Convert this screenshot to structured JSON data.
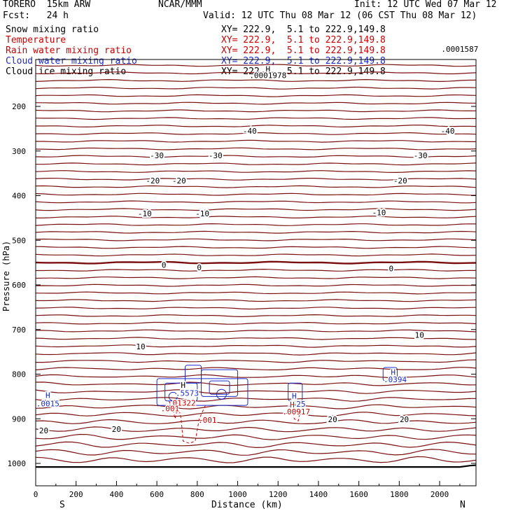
{
  "header": {
    "model": "TORERO  15km ARW",
    "forecast": "Fcst:   24 h",
    "center": "NCAR/MMM",
    "init": "Init: 12 UTC Wed 07 Mar 12",
    "valid": "Valid: 12 UTC Thu 08 Mar 12 (06 CST Thu 08 Mar 12)"
  },
  "colors": {
    "snow": "#000000",
    "temperature": "#7a1010",
    "rain": "#cc0000",
    "cloud_water": "#1a2ccf",
    "cloud_ice": "#000000"
  },
  "legend": [
    {
      "label": "Snow mixing ratio",
      "xy": "XY= 222.9,  5.1 to 222.9,149.8",
      "color": "#000000"
    },
    {
      "label": "Temperature",
      "xy": "XY= 222.9,  5.1 to 222.9,149.8",
      "color": "#cc0000"
    },
    {
      "label": "Rain water mixing ratio",
      "xy": "XY= 222.9,  5.1 to 222.9,149.8",
      "color": "#cc0000"
    },
    {
      "label": "Cloud water mixing ratio",
      "xy": "XY= 222.9,  5.1 to 222.9,149.8",
      "color": "#1a2ccf"
    },
    {
      "label": "Cloud ice mixing ratio",
      "xy": "XY= 222.9,  5.1 to 222.9,149.8",
      "color": "#000000"
    }
  ],
  "chart_data": {
    "type": "line",
    "xlabel": "Distance (km)",
    "ylabel": "Pressure (hPa)",
    "xlim": [
      0,
      2180
    ],
    "ylim": [
      1045,
      100
    ],
    "y_scale": "linear (inverted)",
    "x_ticks": [
      0,
      200,
      400,
      600,
      800,
      1000,
      1200,
      1400,
      1600,
      1800,
      2000
    ],
    "y_ticks": [
      200,
      300,
      400,
      500,
      600,
      700,
      800,
      900,
      1000
    ],
    "x_end_labels": {
      "left": "S",
      "right": "N"
    },
    "temperature_isotherm_labels": [
      {
        "x": 1060,
        "p": 255,
        "text": "-40"
      },
      {
        "x": 2040,
        "p": 255,
        "text": "-40"
      },
      {
        "x": 600,
        "p": 310,
        "text": "-30"
      },
      {
        "x": 890,
        "p": 310,
        "text": "-30"
      },
      {
        "x": 1905,
        "p": 310,
        "text": "-30"
      },
      {
        "x": 580,
        "p": 366,
        "text": "-20"
      },
      {
        "x": 710,
        "p": 366,
        "text": "-20"
      },
      {
        "x": 1805,
        "p": 366,
        "text": "-20"
      },
      {
        "x": 540,
        "p": 440,
        "text": "-10"
      },
      {
        "x": 825,
        "p": 440,
        "text": "-10"
      },
      {
        "x": 1700,
        "p": 438,
        "text": "-10"
      },
      {
        "x": 635,
        "p": 555,
        "text": "0"
      },
      {
        "x": 810,
        "p": 561,
        "text": "0"
      },
      {
        "x": 1760,
        "p": 563,
        "text": "0"
      },
      {
        "x": 520,
        "p": 738,
        "text": "10"
      },
      {
        "x": 1900,
        "p": 712,
        "text": "10"
      },
      {
        "x": 40,
        "p": 926,
        "text": "20"
      },
      {
        "x": 400,
        "p": 923,
        "text": "20"
      },
      {
        "x": 1470,
        "p": 901,
        "text": "20"
      },
      {
        "x": 1825,
        "p": 901,
        "text": "20"
      }
    ],
    "annotations": [
      {
        "x": 1150,
        "p": 116,
        "text": "H",
        "color": "#000000"
      },
      {
        "x": 1150,
        "p": 130,
        "text": ".0001978",
        "color": "#000000"
      },
      {
        "x": 2100,
        "p": 71,
        "text": ".0001587",
        "color": "#000000"
      },
      {
        "x": 60,
        "p": 847,
        "text": "H",
        "color": "#1a2ccf"
      },
      {
        "x": 60,
        "p": 866,
        "text": ".0015",
        "color": "#1a2ccf"
      },
      {
        "x": 730,
        "p": 824,
        "text": "H",
        "color": "#000000"
      },
      {
        "x": 750,
        "p": 842,
        "text": ".5573",
        "color": "#1a2ccf"
      },
      {
        "x": 735,
        "p": 864,
        "text": "01322",
        "color": "#cc0000"
      },
      {
        "x": 665,
        "p": 877,
        "text": ".001",
        "color": "#cc0000"
      },
      {
        "x": 850,
        "p": 903,
        "text": ".001",
        "color": "#cc0000"
      },
      {
        "x": 1280,
        "p": 849,
        "text": "H",
        "color": "#1a2ccf"
      },
      {
        "x": 1290,
        "p": 867,
        "text": ".525",
        "color": "#1a2ccf"
      },
      {
        "x": 1270,
        "p": 868,
        "text": "H",
        "color": "#cc0000"
      },
      {
        "x": 1290,
        "p": 884,
        "text": ".00917",
        "color": "#cc0000"
      },
      {
        "x": 1770,
        "p": 795,
        "text": "H",
        "color": "#1a2ccf"
      },
      {
        "x": 1780,
        "p": 812,
        "text": ".0394",
        "color": "#1a2ccf"
      }
    ]
  }
}
